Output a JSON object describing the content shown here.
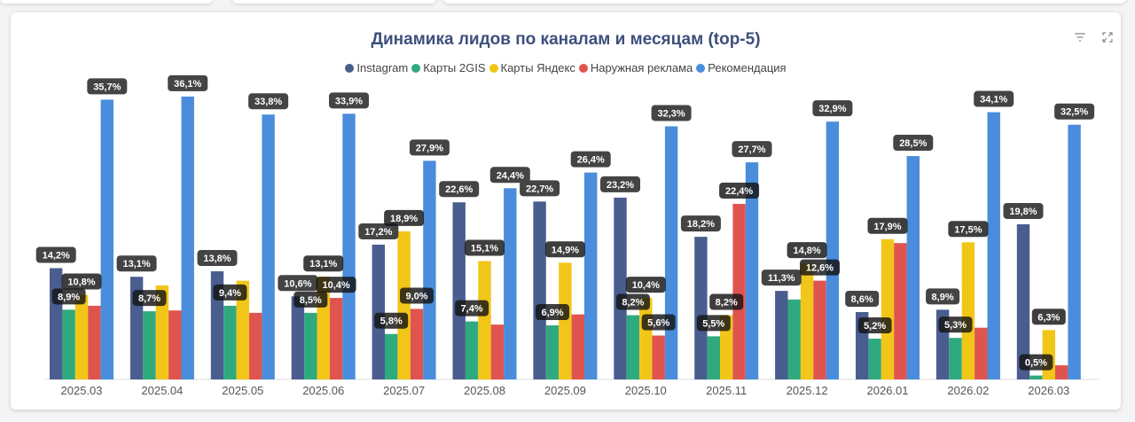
{
  "chart_data": {
    "type": "bar",
    "title": "Динамика лидов по каналам и месяцам (top-5)",
    "categories": [
      "2025.03",
      "2025.04",
      "2025.05",
      "2025.06",
      "2025.07",
      "2025.08",
      "2025.09",
      "2025.10",
      "2025.11",
      "2025.12",
      "2026.01",
      "2026.02",
      "2026.03"
    ],
    "ylim": [
      0,
      38
    ],
    "grid": false,
    "legend": "top",
    "series": [
      {
        "name": "Instagram",
        "color": "#4a5d8f",
        "values": [
          14.2,
          13.1,
          13.8,
          10.6,
          17.2,
          22.6,
          22.7,
          23.2,
          18.2,
          11.3,
          8.6,
          8.9,
          19.8
        ],
        "labels": [
          "14,2%",
          "13,1%",
          "13,8%",
          "10,6%",
          "17,2%",
          "22,6%",
          "22,7%",
          "23,2%",
          "18,2%",
          "11,3%",
          "8,6%",
          "8,9%",
          "19,8%"
        ]
      },
      {
        "name": "Карты 2GIS",
        "color": "#2faa7e",
        "values": [
          8.9,
          8.7,
          9.4,
          8.5,
          5.8,
          7.4,
          6.9,
          8.2,
          5.5,
          10.2,
          5.2,
          5.3,
          0.5
        ],
        "labels": [
          "8,9%",
          "8,7%",
          "9,4%",
          "8,5%",
          "5,8%",
          "7,4%",
          "6,9%",
          "8,2%",
          "5,5%",
          "",
          "5,2%",
          "5,3%",
          "0,5%"
        ]
      },
      {
        "name": "Карты Яндекс",
        "color": "#f2c618",
        "values": [
          10.8,
          12.0,
          12.6,
          13.1,
          18.9,
          15.1,
          14.9,
          10.4,
          8.2,
          14.8,
          17.9,
          17.5,
          6.3
        ],
        "labels": [
          "10,8%",
          "",
          "",
          "13,1%",
          "18,9%",
          "15,1%",
          "14,9%",
          "10,4%",
          "8,2%",
          "14,8%",
          "17,9%",
          "17,5%",
          "6,3%"
        ]
      },
      {
        "name": "Наружная реклама",
        "color": "#e05450",
        "values": [
          9.4,
          8.8,
          8.5,
          10.4,
          9.0,
          7.0,
          8.3,
          5.6,
          22.4,
          12.6,
          17.4,
          6.6,
          1.8
        ],
        "labels": [
          "",
          "",
          "",
          "10,4%",
          "9,0%",
          "",
          "",
          "5,6%",
          "22,4%",
          "12,6%",
          "",
          "",
          ""
        ]
      },
      {
        "name": "Рекомендация",
        "color": "#4a8ddc",
        "values": [
          35.7,
          36.1,
          33.8,
          33.9,
          27.9,
          24.4,
          26.4,
          32.3,
          27.7,
          32.9,
          28.5,
          34.1,
          32.5
        ],
        "labels": [
          "35,7%",
          "36,1%",
          "33,8%",
          "33,9%",
          "27,9%",
          "24,4%",
          "26,4%",
          "32,3%",
          "27,7%",
          "32,9%",
          "28,5%",
          "34,1%",
          "32,5%"
        ]
      }
    ]
  },
  "toolbar": {
    "filter_icon": "filter-icon",
    "expand_icon": "expand-icon"
  }
}
